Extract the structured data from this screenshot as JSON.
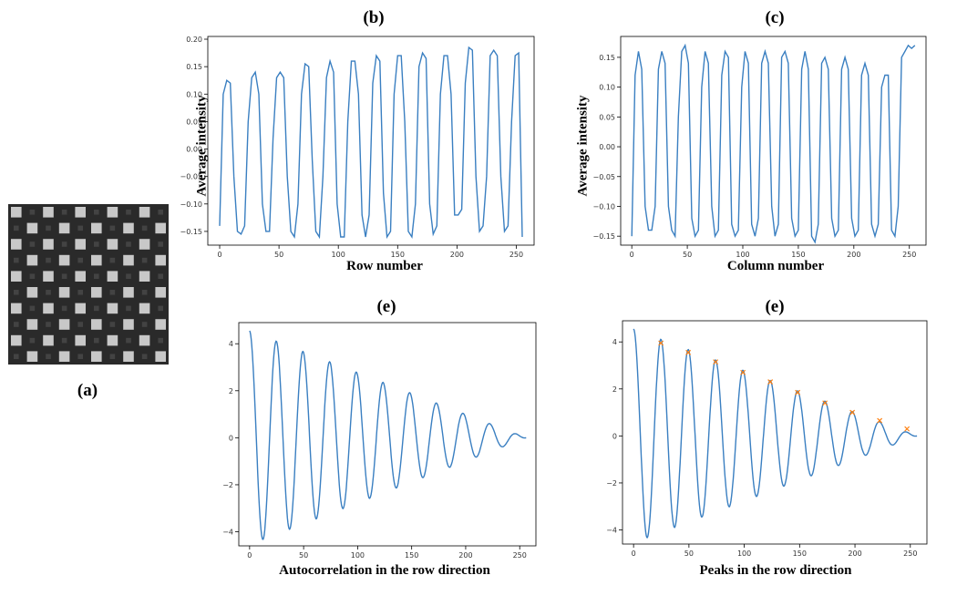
{
  "panels": {
    "a": {
      "label": "(a)"
    },
    "b": {
      "label": "(b)",
      "xlabel": "Row number",
      "ylabel": "Average intensity"
    },
    "c": {
      "label": "(c)",
      "xlabel": "Column  number",
      "ylabel": "Average intensity"
    },
    "d": {
      "label": "(e)",
      "xlabel": "Autocorrelation in the row direction"
    },
    "e": {
      "label": "(e)",
      "xlabel": "Peaks in the row direction"
    }
  },
  "image": {
    "type": "checkerboard",
    "grid": 10,
    "light": "#c8c8c8",
    "dark": "#2a2a2a"
  },
  "chart_data": [
    {
      "id": "b",
      "type": "line",
      "xlim": [
        -10,
        265
      ],
      "ylim": [
        -0.175,
        0.205
      ],
      "xticks": [
        0,
        50,
        100,
        150,
        200,
        250
      ],
      "yticks": [
        -0.15,
        -0.1,
        -0.05,
        0.0,
        0.05,
        0.1,
        0.15,
        0.2
      ],
      "ytick_labels": [
        "−0.15",
        "−0.10",
        "−0.05",
        "0.00",
        "0.05",
        "0.10",
        "0.15",
        "0.20"
      ],
      "color": "#3a7fc1",
      "x": [
        0,
        3,
        6,
        9,
        12,
        15,
        18,
        21,
        24,
        27,
        30,
        33,
        36,
        39,
        42,
        45,
        48,
        51,
        54,
        57,
        60,
        63,
        66,
        69,
        72,
        75,
        78,
        81,
        84,
        87,
        90,
        93,
        96,
        99,
        102,
        105,
        108,
        111,
        114,
        117,
        120,
        123,
        126,
        129,
        132,
        135,
        138,
        141,
        144,
        147,
        150,
        153,
        156,
        159,
        162,
        165,
        168,
        171,
        174,
        177,
        180,
        183,
        186,
        189,
        192,
        195,
        198,
        201,
        204,
        207,
        210,
        213,
        216,
        219,
        222,
        225,
        228,
        231,
        234,
        237,
        240,
        243,
        246,
        249,
        252,
        255
      ],
      "y": [
        -0.14,
        0.1,
        0.125,
        0.12,
        -0.05,
        -0.15,
        -0.155,
        -0.14,
        0.05,
        0.13,
        0.14,
        0.1,
        -0.1,
        -0.15,
        -0.15,
        0.02,
        0.13,
        0.14,
        0.13,
        -0.05,
        -0.15,
        -0.16,
        -0.1,
        0.1,
        0.155,
        0.15,
        -0.02,
        -0.15,
        -0.16,
        -0.05,
        0.13,
        0.16,
        0.14,
        -0.1,
        -0.16,
        -0.16,
        0.05,
        0.16,
        0.16,
        0.1,
        -0.12,
        -0.16,
        -0.12,
        0.12,
        0.17,
        0.16,
        -0.08,
        -0.16,
        -0.15,
        0.1,
        0.17,
        0.17,
        0.05,
        -0.15,
        -0.16,
        -0.1,
        0.15,
        0.175,
        0.165,
        -0.1,
        -0.155,
        -0.14,
        0.1,
        0.17,
        0.17,
        0.1,
        -0.12,
        -0.12,
        -0.11,
        0.12,
        0.185,
        0.18,
        -0.05,
        -0.15,
        -0.14,
        -0.05,
        0.17,
        0.18,
        0.17,
        -0.05,
        -0.15,
        -0.14,
        0.05,
        0.17,
        0.175,
        -0.16
      ]
    },
    {
      "id": "c",
      "type": "line",
      "xlim": [
        -10,
        265
      ],
      "ylim": [
        -0.165,
        0.185
      ],
      "xticks": [
        0,
        50,
        100,
        150,
        200,
        250
      ],
      "yticks": [
        -0.15,
        -0.1,
        -0.05,
        0.0,
        0.05,
        0.1,
        0.15
      ],
      "ytick_labels": [
        "−0.15",
        "−0.10",
        "−0.05",
        "0.00",
        "0.05",
        "0.10",
        "0.15"
      ],
      "color": "#3a7fc1",
      "x": [
        0,
        3,
        6,
        9,
        12,
        15,
        18,
        21,
        24,
        27,
        30,
        33,
        36,
        39,
        42,
        45,
        48,
        51,
        54,
        57,
        60,
        63,
        66,
        69,
        72,
        75,
        78,
        81,
        84,
        87,
        90,
        93,
        96,
        99,
        102,
        105,
        108,
        111,
        114,
        117,
        120,
        123,
        126,
        129,
        132,
        135,
        138,
        141,
        144,
        147,
        150,
        153,
        156,
        159,
        162,
        165,
        168,
        171,
        174,
        177,
        180,
        183,
        186,
        189,
        192,
        195,
        198,
        201,
        204,
        207,
        210,
        213,
        216,
        219,
        222,
        225,
        228,
        231,
        234,
        237,
        240,
        243,
        246,
        249,
        252,
        255
      ],
      "y": [
        -0.15,
        0.12,
        0.16,
        0.13,
        -0.1,
        -0.14,
        -0.14,
        -0.1,
        0.13,
        0.16,
        0.14,
        -0.1,
        -0.14,
        -0.15,
        0.05,
        0.16,
        0.17,
        0.14,
        -0.12,
        -0.15,
        -0.14,
        0.1,
        0.16,
        0.14,
        -0.1,
        -0.15,
        -0.14,
        0.12,
        0.16,
        0.15,
        -0.13,
        -0.15,
        -0.14,
        0.1,
        0.16,
        0.14,
        -0.13,
        -0.15,
        -0.12,
        0.14,
        0.16,
        0.14,
        -0.1,
        -0.15,
        -0.13,
        0.15,
        0.16,
        0.14,
        -0.12,
        -0.15,
        -0.14,
        0.13,
        0.16,
        0.13,
        -0.15,
        -0.16,
        -0.13,
        0.14,
        0.15,
        0.13,
        -0.12,
        -0.15,
        -0.14,
        0.13,
        0.15,
        0.13,
        -0.12,
        -0.15,
        -0.14,
        0.12,
        0.14,
        0.12,
        -0.13,
        -0.15,
        -0.13,
        0.1,
        0.12,
        0.12,
        -0.14,
        -0.15,
        -0.1,
        0.15,
        0.16,
        0.17,
        0.165,
        0.17
      ]
    },
    {
      "id": "d",
      "type": "line",
      "xlim": [
        -10,
        265
      ],
      "ylim": [
        -4.6,
        4.9
      ],
      "xticks": [
        0,
        50,
        100,
        150,
        200,
        250
      ],
      "yticks": [
        -4,
        -2,
        0,
        2,
        4
      ],
      "ytick_labels": [
        "−4",
        "−2",
        "0",
        "2",
        "4"
      ],
      "color": "#3a7fc1",
      "model": {
        "y0": 4.55,
        "period": 24.7,
        "trough_depth": -4.25,
        "end": 256
      }
    },
    {
      "id": "e",
      "type": "line",
      "xlim": [
        -10,
        265
      ],
      "ylim": [
        -4.6,
        4.9
      ],
      "xticks": [
        0,
        50,
        100,
        150,
        200,
        250
      ],
      "yticks": [
        -4,
        -2,
        0,
        2,
        4
      ],
      "ytick_labels": [
        "−4",
        "−2",
        "0",
        "2",
        "4"
      ],
      "color": "#3a7fc1",
      "model": {
        "y0": 4.55,
        "period": 24.7,
        "trough_depth": -4.25,
        "end": 256
      },
      "peaks": {
        "color": "#ff7f0e",
        "x": [
          24.7,
          49.4,
          74.1,
          98.8,
          123.5,
          148.2,
          172.9,
          197.6,
          222.3,
          247.0
        ],
        "y": [
          3.95,
          3.55,
          3.15,
          2.7,
          2.3,
          1.85,
          1.4,
          1.0,
          0.65,
          0.3
        ]
      }
    }
  ]
}
